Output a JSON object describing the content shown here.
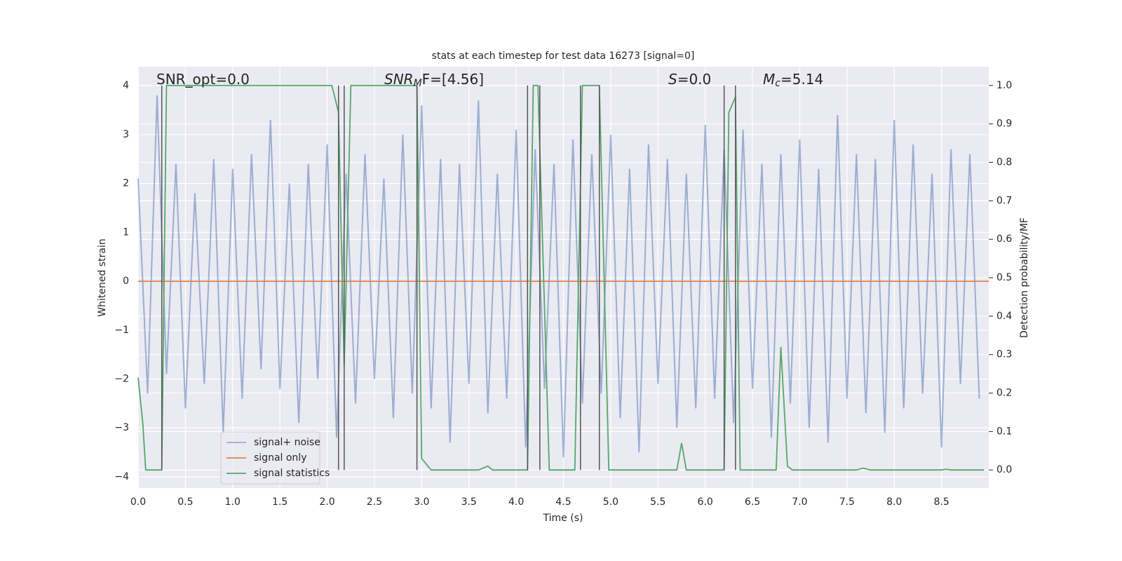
{
  "chart_data": {
    "type": "line",
    "title": "stats at each timestep for test data 16273 [signal=0]",
    "xlabel": "Time (s)",
    "ylabel": "Whitened strain",
    "y2label": "Detection probability/MF",
    "annotations": [
      {
        "base": "SNR_opt=0.0"
      },
      {
        "base": "SNR",
        "sub": "M",
        "rest": "F=[4.56]"
      },
      {
        "base": "S",
        "rest": "=0.0"
      },
      {
        "base": "M",
        "sub": "c",
        "rest": "=5.14"
      }
    ],
    "xlim": [
      0,
      9.0
    ],
    "xticks": [
      {
        "value": 0,
        "label": "0.0"
      },
      0.5,
      {
        "value": 1,
        "label": "1.0"
      },
      1.5,
      {
        "value": 2,
        "label": "2.0"
      },
      2.5,
      {
        "value": 3,
        "label": "3.0"
      },
      3.5,
      {
        "value": 4,
        "label": "4.0"
      },
      4.5,
      {
        "value": 5,
        "label": "5.0"
      },
      5.5,
      {
        "value": 6,
        "label": "6.0"
      },
      6.5,
      {
        "value": 7,
        "label": "7.0"
      },
      7.5,
      {
        "value": 8,
        "label": "8.0"
      },
      8.5
    ],
    "ylim": [
      -4.23,
      4.39
    ],
    "yticks": [
      {
        "value": -4,
        "label": "−4"
      },
      {
        "value": -3,
        "label": "−3"
      },
      {
        "value": -2,
        "label": "−2"
      },
      {
        "value": -1,
        "label": "−1"
      },
      0,
      1,
      2,
      3,
      4
    ],
    "y2lim": [
      -0.047,
      1.049
    ],
    "y2ticks": [
      {
        "value": 0,
        "label": "0.0"
      },
      0.1,
      0.2,
      0.3,
      0.4,
      0.5,
      0.6,
      0.7,
      0.8,
      0.9,
      {
        "value": 1,
        "label": "1.0"
      }
    ],
    "grid": true,
    "legend": "lower left",
    "series": [
      {
        "name": "signal+ noise",
        "color": "#4c72b0",
        "x": [
          0.0,
          0.1,
          0.2,
          0.3,
          0.4,
          0.5,
          0.6,
          0.7,
          0.8,
          0.9,
          1.0,
          1.1,
          1.2,
          1.3,
          1.4,
          1.5,
          1.6,
          1.7,
          1.8,
          1.9,
          2.0,
          2.1,
          2.2,
          2.3,
          2.4,
          2.5,
          2.6,
          2.7,
          2.8,
          2.9,
          3.0,
          3.1,
          3.2,
          3.3,
          3.4,
          3.5,
          3.6,
          3.7,
          3.8,
          3.9,
          4.0,
          4.1,
          4.2,
          4.3,
          4.4,
          4.5,
          4.6,
          4.7,
          4.8,
          4.9,
          5.0,
          5.1,
          5.2,
          5.3,
          5.4,
          5.5,
          5.6,
          5.7,
          5.8,
          5.9,
          6.0,
          6.1,
          6.2,
          6.3,
          6.4,
          6.5,
          6.6,
          6.7,
          6.8,
          6.9,
          7.0,
          7.1,
          7.2,
          7.3,
          7.4,
          7.5,
          7.6,
          7.7,
          7.8,
          7.9,
          8.0,
          8.1,
          8.2,
          8.3,
          8.4,
          8.5,
          8.6,
          8.7,
          8.8,
          8.9
        ],
        "values": [
          2.1,
          -2.3,
          3.8,
          -1.9,
          2.4,
          -2.6,
          1.8,
          -2.1,
          2.5,
          -3.1,
          2.3,
          -2.4,
          2.6,
          -1.8,
          3.3,
          -2.2,
          2.0,
          -2.9,
          2.4,
          -2.0,
          2.8,
          -3.2,
          2.2,
          -2.5,
          2.6,
          -2.0,
          2.1,
          -2.8,
          3.0,
          -2.3,
          3.6,
          -2.6,
          2.5,
          -3.3,
          2.4,
          -2.1,
          3.7,
          -2.7,
          2.2,
          -2.4,
          3.1,
          -3.4,
          2.7,
          -2.2,
          2.4,
          -3.6,
          2.9,
          -2.5,
          2.6,
          -2.3,
          3.0,
          -2.8,
          2.3,
          -3.5,
          2.8,
          -2.1,
          2.5,
          -3.0,
          2.2,
          -2.6,
          3.2,
          -2.4,
          2.7,
          -2.9,
          3.1,
          -2.2,
          2.4,
          -3.2,
          2.6,
          -2.5,
          2.9,
          -3.0,
          2.3,
          -3.3,
          3.4,
          -2.4,
          2.6,
          -2.7,
          2.5,
          -3.1,
          3.3,
          -2.6,
          2.8,
          -2.3,
          2.2,
          -3.4,
          2.7,
          -2.1,
          2.6,
          -2.4
        ]
      },
      {
        "name": "signal only",
        "color": "#dd8452",
        "x": [
          0.0,
          9.0
        ],
        "values": [
          0,
          0
        ]
      },
      {
        "name": "signal statistics",
        "color": "#55a868",
        "axis": "y2",
        "x": [
          0.0,
          0.05,
          0.08,
          0.25,
          0.3,
          2.05,
          2.12,
          2.18,
          2.25,
          2.95,
          3.0,
          3.1,
          3.6,
          3.7,
          3.75,
          4.12,
          4.18,
          4.23,
          4.35,
          4.62,
          4.7,
          4.88,
          4.98,
          5.7,
          5.75,
          5.8,
          6.2,
          6.25,
          6.32,
          6.37,
          6.75,
          6.8,
          6.87,
          6.92,
          7.6,
          7.67,
          7.75,
          8.5,
          8.55,
          8.6,
          8.95
        ],
        "values": [
          0.24,
          0.12,
          0.0,
          0.0,
          1.0,
          1.0,
          0.93,
          0.27,
          1.0,
          1.0,
          0.03,
          0.0,
          0.0,
          0.01,
          0.0,
          0.0,
          1.0,
          1.0,
          0.0,
          0.0,
          1.0,
          1.0,
          0.0,
          0.0,
          0.07,
          0.0,
          0.0,
          0.93,
          0.97,
          0.0,
          0.0,
          0.32,
          0.01,
          0.0,
          0.0,
          0.005,
          0.0,
          0.0,
          0.002,
          0.0,
          0.0
        ]
      }
    ],
    "vlines": {
      "color": "#555555",
      "x": [
        0.25,
        2.12,
        2.18,
        2.95,
        4.12,
        4.25,
        4.68,
        4.88,
        6.2,
        6.32
      ]
    }
  }
}
